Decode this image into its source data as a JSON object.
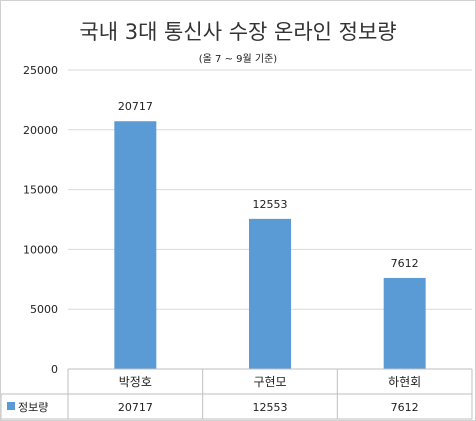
{
  "chart_data": {
    "type": "bar",
    "title": "국내 3대 통신사 수장 온라인 정보량",
    "subtitle": "(올 7 ~ 9월 기준)",
    "categories": [
      "박정호",
      "구현모",
      "하현회"
    ],
    "series": [
      {
        "name": "정보량",
        "values": [
          20717,
          12553,
          7612
        ],
        "color": "#5b9bd5"
      }
    ],
    "ylim": [
      0,
      25000
    ],
    "yticks": [
      "0",
      "5000",
      "10000",
      "15000",
      "20000",
      "25000"
    ],
    "grid": true,
    "data_labels": [
      "20717",
      "12553",
      "7612"
    ],
    "data_table": true
  }
}
